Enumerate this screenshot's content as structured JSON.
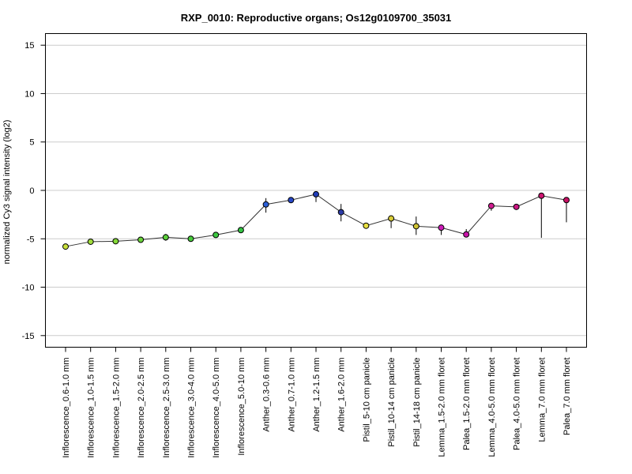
{
  "chart_data": {
    "type": "line",
    "title": "RXP_0010: Reproductive organs; Os12g0109700_35031",
    "xlabel": "",
    "ylabel": "normalized Cy3 signal intensity (log2)",
    "ylim": [
      -16.2,
      16.2
    ],
    "yticks": [
      -15,
      -10,
      -5,
      0,
      5,
      10,
      15
    ],
    "grid": "horizontal",
    "categories": [
      "Inflorescence_0.6-1.0 mm",
      "Inflorescence_1.0-1.5 mm",
      "Inflorescence_1.5-2.0 mm",
      "Inflorescence_2.0-2.5 mm",
      "Inflorescence_2.5-3.0 mm",
      "Inflorescence_3.0-4.0 mm",
      "Inflorescence_4.0-5.0 mm",
      "Inflorescence_5.0-10 mm",
      "Anther_0.3-0.6 mm",
      "Anther_0.7-1.0 mm",
      "Anther_1.2-1.5 mm",
      "Anther_1.6-2.0 mm",
      "Pistil_5-10 cm panicle",
      "Pistil_10-14 cm panicle",
      "Pistil_14-18 cm panicle",
      "Lemma_1.5-2.0 mm floret",
      "Palea_1.5-2.0 mm floret",
      "Lemma_4.0-5.0 mm floret",
      "Palea_4.0-5.0 mm floret",
      "Lemma_7.0 mm floret",
      "Palea_7.0 mm floret"
    ],
    "values": [
      -5.8,
      -5.3,
      -5.25,
      -5.1,
      -4.85,
      -5.0,
      -4.6,
      -4.1,
      -1.45,
      -1.0,
      -0.4,
      -2.25,
      -3.65,
      -2.9,
      -3.7,
      -3.85,
      -4.55,
      -1.6,
      -1.7,
      -0.55,
      -1.0
    ],
    "error_low": [
      -6.1,
      -5.45,
      -5.35,
      -5.3,
      -5.2,
      -5.1,
      -4.7,
      -4.2,
      -2.3,
      -1.15,
      -1.2,
      -3.2,
      -3.9,
      -3.9,
      -4.6,
      -4.6,
      -4.7,
      -2.1,
      -1.8,
      -4.9,
      -3.3
    ],
    "error_high": [
      -5.5,
      -5.15,
      -5.15,
      -4.9,
      -4.5,
      -4.9,
      -4.5,
      -4.0,
      -0.8,
      -0.85,
      -0.3,
      -1.4,
      -3.4,
      -2.7,
      -2.7,
      -3.7,
      -4.0,
      -1.5,
      -1.6,
      -0.5,
      -0.8
    ],
    "point_colors": [
      "#c8e03c",
      "#a0dc3c",
      "#84d838",
      "#6cd43c",
      "#5cd03c",
      "#48cc3c",
      "#3cc840",
      "#34c444",
      "#2c60d8",
      "#2848c8",
      "#203cb8",
      "#2c3ca8",
      "#e8e040",
      "#d8cc38",
      "#d0c434",
      "#cc1cb8",
      "#c814a8",
      "#d01c90",
      "#cc1884",
      "#cc1470",
      "#c81064"
    ]
  }
}
